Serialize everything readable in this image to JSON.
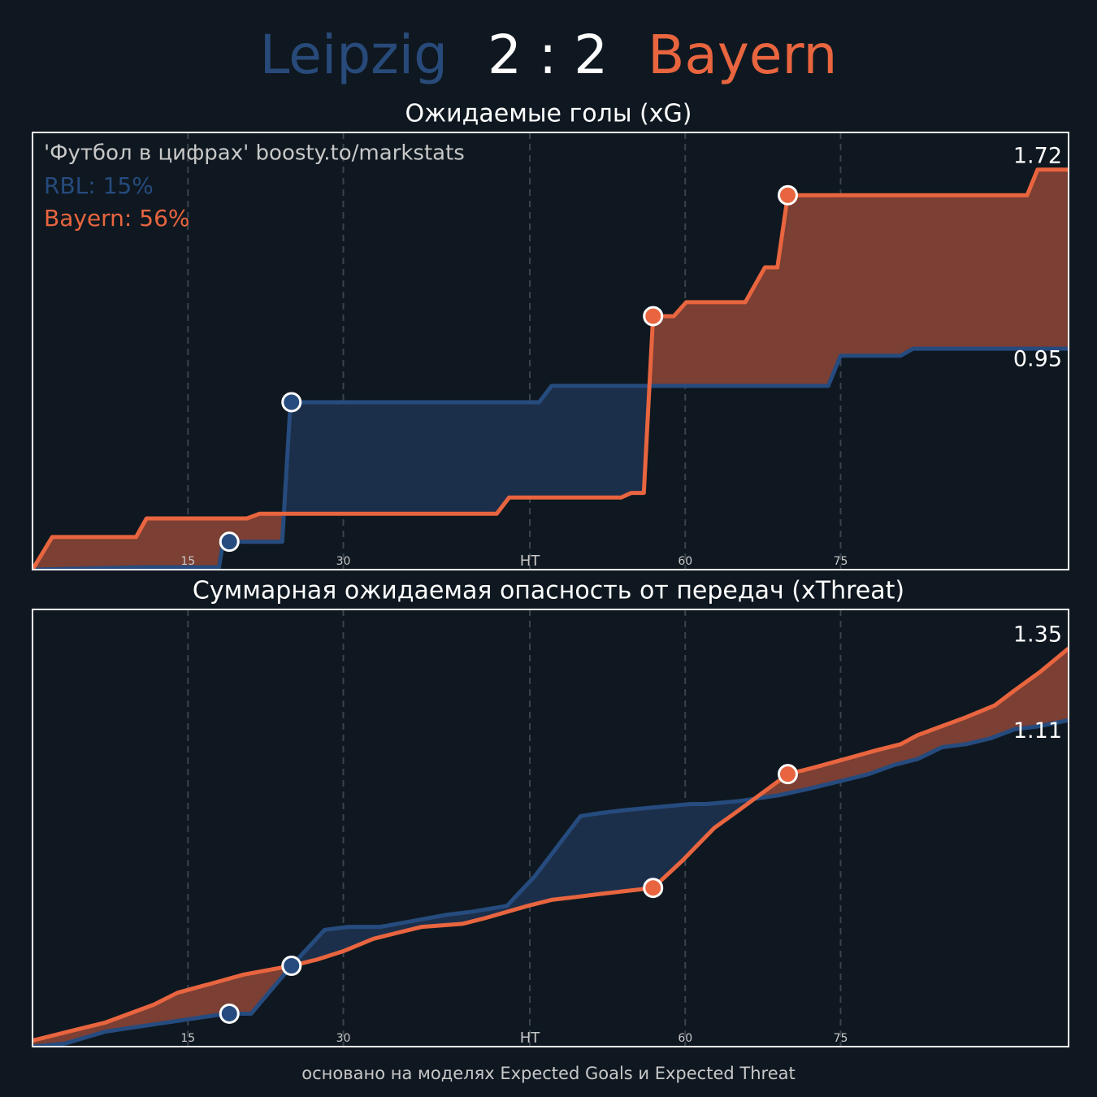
{
  "header": {
    "home": "Leipzig",
    "score": "2 : 2",
    "away": "Bayern"
  },
  "footer": "основано на моделях Expected Goals и Expected Threat",
  "chart_data": [
    {
      "type": "line",
      "title": "Ожидаемые голы (xG)",
      "annotations": {
        "credit": "'Футбол в цифрах' boosty.to/markstats",
        "stats": [
          "RBL: 15%",
          "Bayern: 56%"
        ]
      },
      "xlim": [
        0,
        100
      ],
      "ylim": [
        0,
        1.88
      ],
      "grid": true,
      "xticks": [
        15,
        30,
        {
          "value": 48,
          "label": "HT"
        },
        {
          "value": 63,
          "label": "60"
        },
        {
          "value": 78,
          "label": "75"
        }
      ],
      "series": [
        {
          "color": "#264b7e",
          "fill_color": "#1c2f4a",
          "x": [
            0,
            10.5,
            18.0,
            18.4,
            24.1,
            24.9,
            48.9,
            50.1,
            76.8,
            78.0,
            83.8,
            85.0,
            100
          ],
          "values": [
            0,
            0.01,
            0.01,
            0.12,
            0.12,
            0.72,
            0.72,
            0.79,
            0.79,
            0.92,
            0.92,
            0.95,
            0.95
          ],
          "markers_x": [
            19.0,
            25.0
          ],
          "markers_y": [
            0.12,
            0.72
          ]
        },
        {
          "color": "#e8653f",
          "fill_color": "#7b3f33",
          "x": [
            0,
            1.9,
            10.0,
            11.0,
            20.7,
            21.9,
            44.8,
            46.0,
            56.8,
            57.8,
            59.0,
            59.9,
            61.9,
            63.1,
            68.8,
            70.7,
            71.9,
            72.9,
            96.0,
            97.0,
            100
          ],
          "values": [
            0,
            0.14,
            0.14,
            0.22,
            0.22,
            0.24,
            0.24,
            0.31,
            0.31,
            0.33,
            0.33,
            1.09,
            1.09,
            1.15,
            1.15,
            1.3,
            1.3,
            1.61,
            1.61,
            1.72,
            1.72
          ],
          "markers_x": [
            59.9,
            72.9
          ],
          "markers_y": [
            1.09,
            1.61
          ]
        }
      ]
    },
    {
      "type": "line",
      "title": "Суммарная ожидаемая опасность от передач (xThreat)",
      "xlim": [
        0,
        100
      ],
      "ylim": [
        0.02,
        1.48
      ],
      "grid": true,
      "xticks": [
        15,
        30,
        {
          "value": 48,
          "label": "HT"
        },
        {
          "value": 63,
          "label": "60"
        },
        {
          "value": 78,
          "label": "75"
        }
      ],
      "series": [
        {
          "color": "#264b7e",
          "fill_color": "#1c2f4a",
          "x": [
            0,
            3.1,
            7.0,
            10.9,
            14.8,
            18.7,
            21.1,
            25.0,
            28.2,
            30.5,
            33.6,
            36.8,
            39.9,
            42.3,
            45.8,
            48.5,
            52.9,
            54.8,
            57.2,
            63.5,
            65.0,
            68.2,
            72.1,
            74.8,
            78.4,
            80.7,
            83.1,
            85.4,
            87.8,
            90.1,
            92.5,
            94.8,
            97.2,
            100
          ],
          "values": [
            0.02,
            0.03,
            0.07,
            0.09,
            0.11,
            0.13,
            0.13,
            0.29,
            0.41,
            0.42,
            0.42,
            0.44,
            0.46,
            0.47,
            0.49,
            0.59,
            0.79,
            0.8,
            0.81,
            0.83,
            0.83,
            0.84,
            0.86,
            0.88,
            0.91,
            0.93,
            0.96,
            0.98,
            1.02,
            1.03,
            1.05,
            1.08,
            1.09,
            1.11
          ],
          "markers_x": [
            19.0,
            25.0
          ],
          "markers_y": [
            0.13,
            0.29
          ]
        },
        {
          "color": "#e8653f",
          "fill_color": "#7b3f33",
          "x": [
            0,
            4.6,
            7.0,
            11.7,
            14.0,
            17.2,
            20.3,
            25.0,
            27.4,
            30.1,
            32.9,
            35.2,
            37.6,
            41.5,
            43.8,
            47.8,
            50.1,
            52.5,
            54.8,
            59.9,
            62.7,
            65.8,
            68.2,
            72.9,
            75.2,
            78.4,
            81.5,
            83.8,
            85.4,
            90.1,
            92.9,
            94.8,
            97.2,
            100
          ],
          "values": [
            0.04,
            0.08,
            0.1,
            0.16,
            0.2,
            0.23,
            0.26,
            0.29,
            0.31,
            0.34,
            0.38,
            0.4,
            0.42,
            0.43,
            0.45,
            0.49,
            0.51,
            0.52,
            0.53,
            0.55,
            0.64,
            0.75,
            0.81,
            0.93,
            0.95,
            0.98,
            1.01,
            1.03,
            1.06,
            1.12,
            1.16,
            1.21,
            1.27,
            1.35
          ],
          "markers_x": [
            59.9,
            72.9
          ],
          "markers_y": [
            0.55,
            0.93
          ]
        }
      ]
    }
  ]
}
